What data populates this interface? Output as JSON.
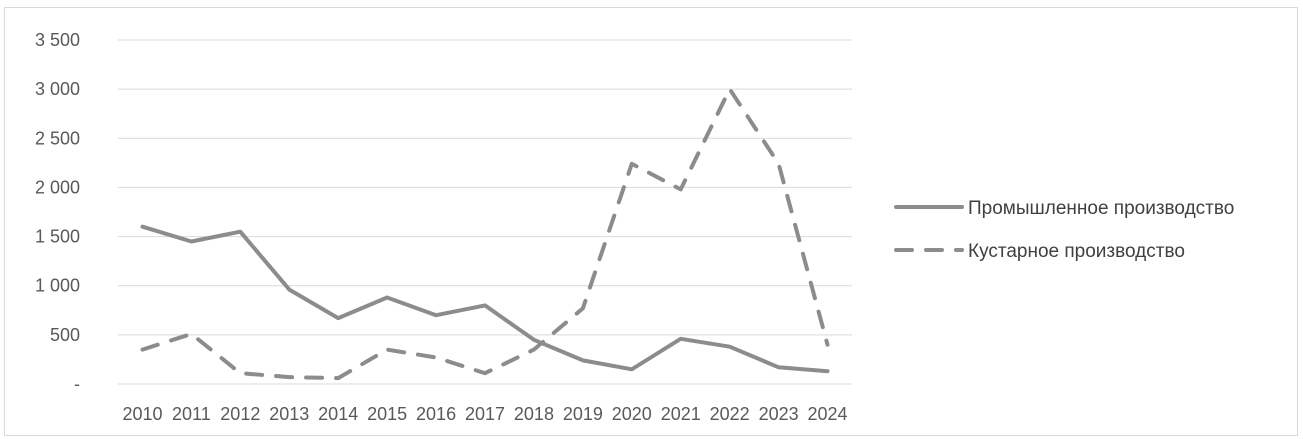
{
  "chart_data": {
    "type": "line",
    "title": "",
    "xlabel": "",
    "ylabel": "",
    "categories": [
      "2010",
      "2011",
      "2012",
      "2013",
      "2014",
      "2015",
      "2016",
      "2017",
      "2018",
      "2019",
      "2020",
      "2021",
      "2022",
      "2023",
      "2024"
    ],
    "y_ticks": [
      {
        "value": 0,
        "label": "-"
      },
      {
        "value": 500,
        "label": "500"
      },
      {
        "value": 1000,
        "label": "1 000"
      },
      {
        "value": 1500,
        "label": "1 500"
      },
      {
        "value": 2000,
        "label": "2 000"
      },
      {
        "value": 2500,
        "label": "2 500"
      },
      {
        "value": 3000,
        "label": "3 000"
      },
      {
        "value": 3500,
        "label": "3 500"
      }
    ],
    "ylim": [
      0,
      3500
    ],
    "grid": true,
    "legend_position": "right",
    "series": [
      {
        "name": "Промышленное производство",
        "style": "solid",
        "color": "#8c8c8c",
        "values": [
          1600,
          1450,
          1550,
          960,
          670,
          880,
          700,
          800,
          450,
          240,
          150,
          460,
          380,
          170,
          130
        ]
      },
      {
        "name": "Кустарное производство",
        "style": "dashed",
        "color": "#8c8c8c",
        "values": [
          350,
          510,
          110,
          70,
          60,
          350,
          270,
          110,
          350,
          770,
          2240,
          1980,
          3000,
          2240,
          400
        ]
      }
    ]
  }
}
